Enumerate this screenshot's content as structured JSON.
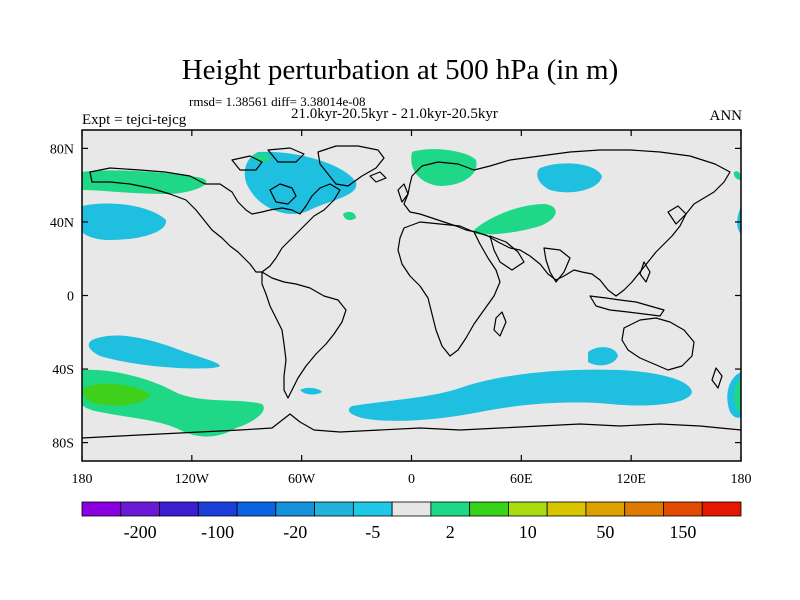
{
  "title": "Height perturbation at 500 hPa (in m)",
  "rmsd_line": "rmsd= 1.38561 diff= 3.38014e-08",
  "expt_line": "Expt = tejci-tejcg",
  "period_line": "21.0kyr-20.5kyr - 21.0kyr-20.5kyr",
  "season": "ANN",
  "map": {
    "lat_ticks": [
      "80N",
      "40N",
      "0",
      "40S",
      "80S"
    ],
    "lat_values": [
      80,
      40,
      0,
      -40,
      -80
    ],
    "lon_ticks": [
      "180",
      "120W",
      "60W",
      "0",
      "60E",
      "120E",
      "180"
    ],
    "lon_values": [
      -180,
      -120,
      -60,
      0,
      60,
      120,
      180
    ],
    "ocean_color": "#e8e8e8"
  },
  "colorbar": {
    "colors": [
      "#8a00e0",
      "#6a1ad6",
      "#3a1fd0",
      "#1b3fd8",
      "#0a63e0",
      "#1692dd",
      "#22b2dc",
      "#1ec8e6",
      "#e6e6e6",
      "#1ed887",
      "#37d21a",
      "#a8dc10",
      "#d8c400",
      "#dca000",
      "#de7a00",
      "#e24a00",
      "#e41800"
    ],
    "labels": [
      "-200",
      "-100",
      "-20",
      "-5",
      "2",
      "10",
      "50",
      "150"
    ]
  },
  "regions": {
    "blue": "#1fbfe0",
    "green": "#1ed887",
    "brightgreen": "#3fd01c"
  }
}
